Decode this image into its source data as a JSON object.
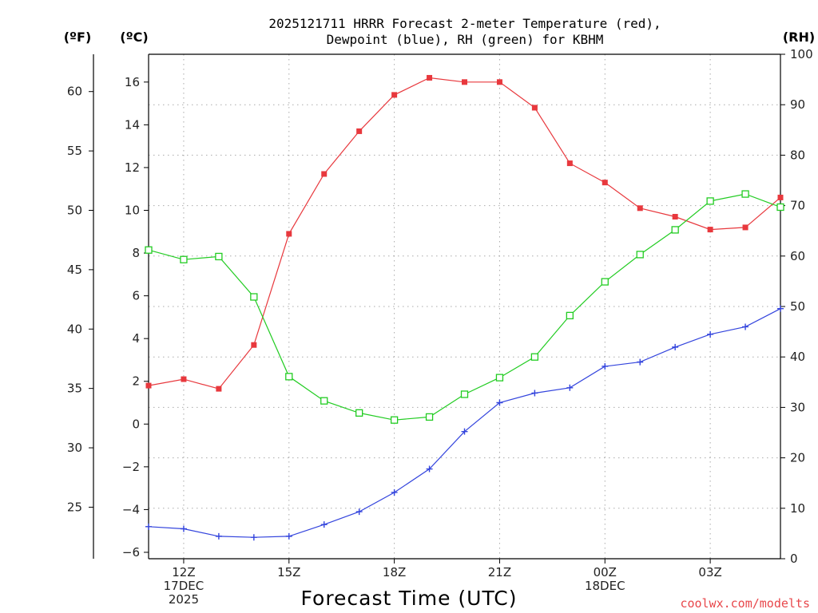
{
  "chart_data": {
    "type": "line",
    "title_lines": [
      "2025121711 HRRR Forecast 2-meter Temperature (red),",
      "Dewpoint (blue), RH (green) for KBHM"
    ],
    "xlabel": "Forecast Time (UTC)",
    "credit": "coolwx.com/modelts",
    "units": {
      "f": "(ºF)",
      "c": "(ºC)",
      "rh": "(RH)"
    },
    "x_hours": [
      11,
      12,
      13,
      14,
      15,
      16,
      17,
      18,
      19,
      20,
      21,
      22,
      23,
      24,
      25,
      26,
      27,
      28,
      29
    ],
    "xlim": [
      11,
      29
    ],
    "x_ticks": [
      {
        "hour": 12,
        "lines": [
          "12Z",
          "17DEC",
          "2025"
        ]
      },
      {
        "hour": 15,
        "lines": [
          "15Z"
        ]
      },
      {
        "hour": 18,
        "lines": [
          "18Z"
        ]
      },
      {
        "hour": 21,
        "lines": [
          "21Z"
        ]
      },
      {
        "hour": 24,
        "lines": [
          "00Z",
          "18DEC"
        ]
      },
      {
        "hour": 27,
        "lines": [
          "03Z"
        ]
      }
    ],
    "celsius_axis": {
      "range": [
        -6.3,
        17.3
      ],
      "ticks": [
        -6,
        -4,
        -2,
        0,
        2,
        4,
        6,
        8,
        10,
        12,
        14,
        16
      ]
    },
    "fahrenheit_ticks": [
      25,
      30,
      35,
      40,
      45,
      50,
      55,
      60
    ],
    "rh_axis": {
      "range": [
        0,
        100
      ],
      "ticks": [
        0,
        10,
        20,
        30,
        40,
        50,
        60,
        70,
        80,
        90,
        100
      ]
    },
    "series": [
      {
        "name": "Temperature",
        "axis": "celsius",
        "color": "#e8383d",
        "marker": "filled-square",
        "values": [
          1.8,
          2.1,
          1.65,
          3.7,
          8.9,
          11.7,
          13.7,
          15.4,
          16.2,
          16.0,
          16.0,
          14.8,
          12.2,
          11.3,
          10.1,
          9.7,
          9.1,
          9.2,
          10.6
        ]
      },
      {
        "name": "Dewpoint",
        "axis": "celsius",
        "color": "#3344dd",
        "marker": "plus",
        "values": [
          -4.8,
          -4.9,
          -5.25,
          -5.3,
          -5.25,
          -4.7,
          -4.1,
          -3.2,
          -2.1,
          -0.35,
          1.0,
          1.45,
          1.7,
          2.7,
          2.9,
          3.6,
          4.2,
          4.55,
          5.4
        ]
      },
      {
        "name": "RH",
        "axis": "rh",
        "color": "#22cc22",
        "marker": "open-square",
        "values": [
          61.2,
          59.3,
          59.9,
          51.9,
          36.1,
          31.3,
          28.9,
          27.5,
          28.1,
          32.6,
          35.9,
          40.0,
          48.2,
          54.9,
          60.3,
          65.2,
          70.9,
          72.3,
          69.7
        ]
      }
    ]
  }
}
